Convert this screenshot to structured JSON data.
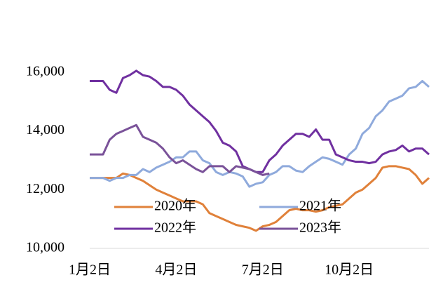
{
  "chart_data": {
    "type": "line",
    "categories": [
      "1月2日",
      null,
      null,
      null,
      null,
      null,
      null,
      null,
      null,
      null,
      null,
      null,
      null,
      "4月2日",
      null,
      null,
      null,
      null,
      null,
      null,
      null,
      null,
      null,
      null,
      null,
      null,
      "7月2日",
      null,
      null,
      null,
      null,
      null,
      null,
      null,
      null,
      null,
      null,
      null,
      null,
      "10月2日",
      null,
      null,
      null,
      null,
      null,
      null,
      null,
      null,
      null,
      null,
      null,
      null
    ],
    "series": [
      {
        "name": "2020年",
        "color": "#e0813a",
        "values": [
          12400,
          12400,
          12400,
          12400,
          12400,
          12550,
          12500,
          12400,
          12300,
          12150,
          12000,
          11900,
          11800,
          11700,
          11600,
          11600,
          11600,
          11500,
          11200,
          11100,
          11000,
          10900,
          10800,
          10750,
          10700,
          10600,
          10750,
          10800,
          10900,
          11100,
          11300,
          11350,
          11300,
          11300,
          11250,
          11300,
          11400,
          11450,
          11500,
          11700,
          11900,
          12000,
          12200,
          12400,
          12750,
          12800,
          12800,
          12750,
          12700,
          12500,
          12200,
          12400
        ]
      },
      {
        "name": "2021年",
        "color": "#8faadc",
        "values": [
          12400,
          12400,
          12400,
          12300,
          12400,
          12400,
          12500,
          12500,
          12700,
          12600,
          12750,
          12850,
          12950,
          13100,
          13100,
          13300,
          13300,
          13000,
          12900,
          12600,
          12500,
          12600,
          12550,
          12450,
          12100,
          12200,
          12250,
          12500,
          12600,
          12800,
          12800,
          12650,
          12600,
          12800,
          12950,
          13100,
          13050,
          12950,
          12850,
          13200,
          13400,
          13900,
          14100,
          14500,
          14700,
          15000,
          15100,
          15200,
          15450,
          15500,
          15700,
          15500
        ]
      },
      {
        "name": "2022年",
        "color": "#7030a0",
        "values": [
          15700,
          15700,
          15700,
          15400,
          15300,
          15800,
          15900,
          16050,
          15900,
          15850,
          15700,
          15500,
          15500,
          15400,
          15200,
          14900,
          14700,
          14500,
          14300,
          14000,
          13600,
          13500,
          13300,
          12800,
          12700,
          12600,
          12600,
          13000,
          13200,
          13500,
          13700,
          13900,
          13900,
          13800,
          14050,
          13700,
          13700,
          13200,
          13100,
          13000,
          12950,
          12950,
          12900,
          12950,
          13200,
          13300,
          13350,
          13500,
          13300,
          13400,
          13400,
          13200
        ]
      },
      {
        "name": "2023年",
        "color": "#7a5299",
        "values": [
          13200,
          13200,
          13200,
          13700,
          13900,
          14000,
          14100,
          14200,
          13800,
          13700,
          13600,
          13400,
          13100,
          12900,
          13000,
          12850,
          12700,
          12600,
          12800,
          12800,
          12800,
          12600,
          12800,
          12750,
          12700,
          12600,
          12500,
          12550,
          null,
          null,
          null,
          null,
          null,
          null,
          null,
          null,
          null,
          null,
          null,
          null,
          null,
          null,
          null,
          null,
          null,
          null,
          null,
          null,
          null,
          null,
          null,
          null
        ]
      }
    ],
    "ylim": [
      10000,
      16500
    ],
    "yticks": [
      {
        "value": 10000,
        "label": "10,000"
      },
      {
        "value": 12000,
        "label": "12,000"
      },
      {
        "value": 14000,
        "label": "14,000"
      },
      {
        "value": 16000,
        "label": "16,000"
      }
    ]
  }
}
